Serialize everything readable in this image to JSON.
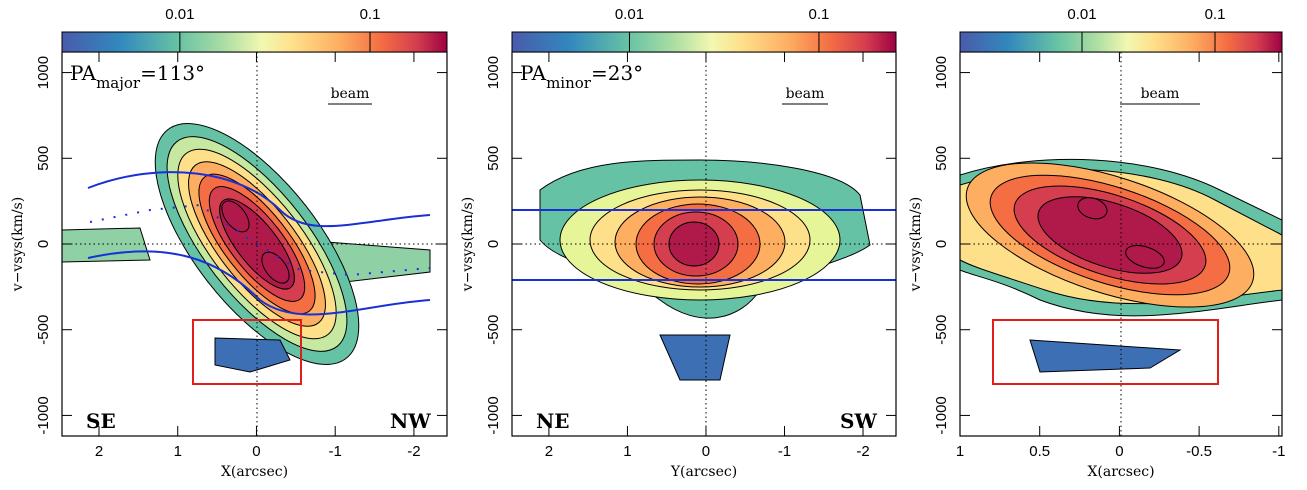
{
  "chart_data": [
    {
      "type": "pv-diagram",
      "xlabel": "X(arcsec)",
      "ylabel": "v−vsys(km/s)",
      "xlim": [
        2.47,
        -2.42
      ],
      "ylim": [
        -1120,
        1120
      ],
      "xticks": [
        2,
        1,
        0,
        -1,
        -2
      ],
      "yticks": [
        -1000,
        -500,
        0,
        500,
        1000
      ],
      "colorbar": {
        "scale": "log",
        "lim": [
          0.0024,
          0.254
        ],
        "ticks": [
          0.01,
          0.1
        ]
      },
      "annotations": {
        "pa": "PA",
        "pa_sub": "major",
        "pa_value": "=113°",
        "beam": "beam",
        "left": "SE",
        "right": "NW"
      }
    },
    {
      "type": "pv-diagram",
      "xlabel": "Y(arcsec)",
      "ylabel": "v−vsys(km/s)",
      "xlim": [
        2.47,
        -2.42
      ],
      "ylim": [
        -1120,
        1120
      ],
      "xticks": [
        2,
        1,
        0,
        -1,
        -2
      ],
      "yticks": [
        -1000,
        -500,
        0,
        500,
        1000
      ],
      "colorbar": {
        "scale": "log",
        "lim": [
          0.0024,
          0.255
        ],
        "ticks": [
          0.01,
          0.1
        ]
      },
      "annotations": {
        "pa": "PA",
        "pa_sub": "minor",
        "pa_value": "=23°",
        "beam": "beam",
        "left": "NE",
        "right": "SW"
      }
    },
    {
      "type": "pv-diagram",
      "xlabel": "X(arcsec)",
      "ylabel": "v−vsys(km/s)",
      "xlim": [
        1,
        -1.02
      ],
      "ylim": [
        -1120,
        1120
      ],
      "xticks": [
        1,
        0.5,
        0,
        -0.5,
        -1
      ],
      "yticks": [
        -1000,
        -500,
        0,
        500,
        1000
      ],
      "colorbar": {
        "scale": "log",
        "lim": [
          0.00121,
          0.319
        ],
        "ticks": [
          0.01,
          0.1
        ]
      },
      "annotations": {
        "beam": "beam"
      }
    }
  ]
}
